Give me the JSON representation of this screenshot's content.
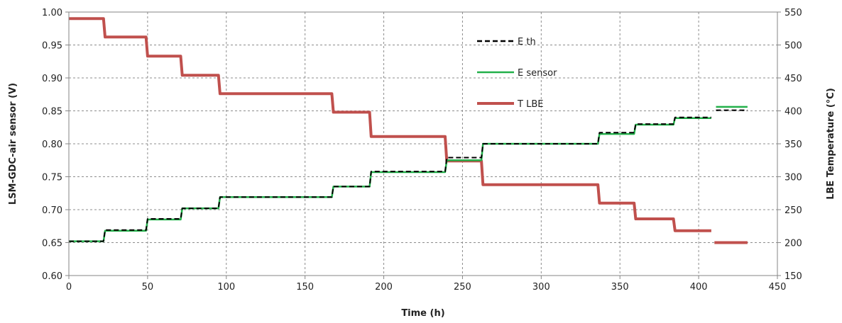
{
  "chart_data": {
    "type": "line",
    "xlabel": "Time (h)",
    "ylabel_left": "LSM-GDC-air sensor (V)",
    "ylabel_right": "LBE Temperature (°C)",
    "xlim": [
      0,
      450
    ],
    "ylim_left": [
      0.6,
      1.0
    ],
    "ylim_right": [
      150,
      550
    ],
    "x_ticks": [
      "0",
      "50",
      "100",
      "150",
      "200",
      "250",
      "300",
      "350",
      "400",
      "450"
    ],
    "y_left_ticks": [
      "0.60",
      "0.65",
      "0.70",
      "0.75",
      "0.80",
      "0.85",
      "0.90",
      "0.95",
      "1.00"
    ],
    "y_right_ticks": [
      "150",
      "200",
      "250",
      "300",
      "350",
      "400",
      "450",
      "500",
      "550"
    ],
    "grid": true,
    "legend_position": "center-right",
    "series": [
      {
        "name": "E th",
        "axis": "left",
        "color": "#000000",
        "style": "dashed",
        "x": [
          0,
          22,
          23,
          49,
          50,
          71,
          72,
          95,
          96,
          167,
          168,
          191,
          192,
          239,
          240,
          262,
          263,
          336,
          337,
          359,
          360,
          384,
          385,
          408
        ],
        "y": [
          0.652,
          0.652,
          0.669,
          0.669,
          0.686,
          0.686,
          0.702,
          0.702,
          0.719,
          0.719,
          0.735,
          0.735,
          0.758,
          0.758,
          0.779,
          0.779,
          0.8,
          0.8,
          0.817,
          0.817,
          0.83,
          0.83,
          0.84,
          0.84
        ]
      },
      {
        "name": "E sensor",
        "axis": "left",
        "color": "#22b04a",
        "style": "solid",
        "x": [
          0,
          22,
          23,
          49,
          50,
          71,
          72,
          95,
          96,
          167,
          168,
          191,
          192,
          239,
          240,
          262,
          263,
          336,
          337,
          359,
          360,
          384,
          385,
          408
        ],
        "y": [
          0.652,
          0.652,
          0.668,
          0.668,
          0.685,
          0.685,
          0.702,
          0.702,
          0.719,
          0.719,
          0.735,
          0.735,
          0.757,
          0.757,
          0.775,
          0.775,
          0.8,
          0.8,
          0.815,
          0.815,
          0.829,
          0.829,
          0.839,
          0.839
        ]
      },
      {
        "name": "E th",
        "axis": "left",
        "color": "#000000",
        "style": "dashed",
        "x": [
          411,
          431
        ],
        "y": [
          0.851,
          0.851
        ]
      },
      {
        "name": "E sensor",
        "axis": "left",
        "color": "#22b04a",
        "style": "solid",
        "x": [
          411,
          431
        ],
        "y": [
          0.856,
          0.856
        ]
      },
      {
        "name": "T LBE",
        "axis": "right",
        "color": "#c0504d",
        "style": "solid",
        "x": [
          0,
          22,
          23,
          49,
          50,
          71,
          72,
          95,
          96,
          167,
          168,
          191,
          192,
          239,
          240,
          262,
          263,
          336,
          337,
          359,
          360,
          384,
          385,
          408
        ],
        "y": [
          540,
          540,
          512,
          512,
          483,
          483,
          454,
          454,
          426,
          426,
          398,
          398,
          361,
          361,
          324,
          324,
          288,
          288,
          260,
          260,
          236,
          236,
          218,
          218
        ]
      },
      {
        "name": "T LBE",
        "axis": "right",
        "color": "#c0504d",
        "style": "solid",
        "x": [
          410,
          431
        ],
        "y": [
          200,
          200
        ]
      }
    ],
    "legend": [
      {
        "name": "E th",
        "color": "#000000",
        "style": "dashed"
      },
      {
        "name": "E sensor",
        "color": "#22b04a",
        "style": "solid"
      },
      {
        "name": "T LBE",
        "color": "#c0504d",
        "style": "solid"
      }
    ]
  }
}
